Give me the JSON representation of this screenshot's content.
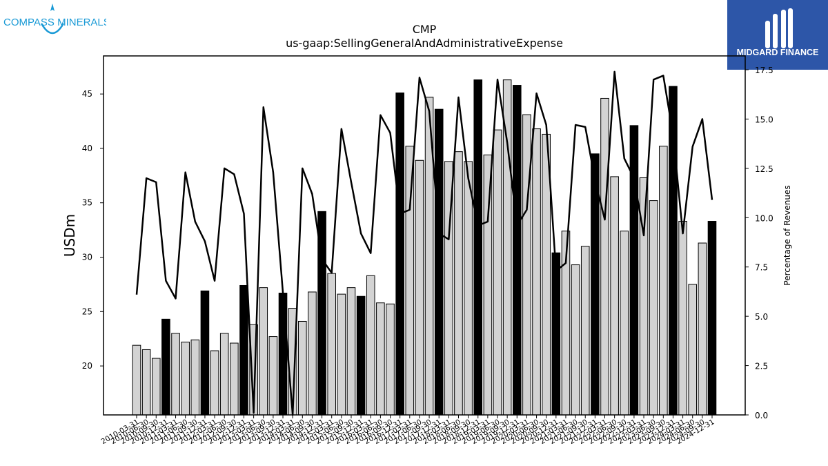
{
  "logos": {
    "left_text": "COMPASS MINERALS",
    "right_text": "MIDGARD FINANCE",
    "left_color": "#1a9ad6",
    "right_bg": "#2d56a8"
  },
  "chart_data": {
    "type": "bar",
    "title": "CMP",
    "subtitle": "us-gaap:SellingGeneralAndAdministrativeExpense",
    "ylabel": "USDm",
    "y2label": "Percentage of Revenues",
    "ylim": [
      15.5,
      48.5
    ],
    "y2lim": [
      0,
      18.2
    ],
    "yticks": [
      20,
      25,
      30,
      35,
      40,
      45
    ],
    "y2ticks": [
      "0.0",
      "2.5",
      "5.0",
      "7.5",
      "10.0",
      "12.5",
      "15.0",
      "17.5"
    ],
    "categories": [
      "2010-03-31",
      "2010-06-30",
      "2010-09-30",
      "2010-12-31",
      "2011-03-31",
      "2011-06-30",
      "2011-09-30",
      "2011-12-31",
      "2012-03-31",
      "2012-06-30",
      "2012-09-30",
      "2012-12-31",
      "2013-03-31",
      "2013-06-30",
      "2013-09-30",
      "2013-12-31",
      "2014-03-31",
      "2014-06-30",
      "2014-09-30",
      "2014-12-31",
      "2015-03-31",
      "2015-06-30",
      "2015-09-30",
      "2015-12-31",
      "2016-03-31",
      "2016-06-30",
      "2016-09-30",
      "2016-12-31",
      "2017-03-31",
      "2017-06-30",
      "2017-09-30",
      "2017-12-31",
      "2018-03-31",
      "2018-06-30",
      "2018-09-30",
      "2018-12-31",
      "2019-03-31",
      "2019-06-30",
      "2019-09-30",
      "2019-12-31",
      "2020-03-31",
      "2020-06-30",
      "2020-09-30",
      "2020-12-31",
      "2021-03-31",
      "2021-06-30",
      "2021-09-30",
      "2021-12-31",
      "2022-03-31",
      "2022-06-30",
      "2022-09-30",
      "2022-12-31",
      "2023-03-31",
      "2023-06-30",
      "2023-09-30",
      "2023-12-31",
      "2024-03-31",
      "2024-06-30",
      "2024-09-30",
      "2024-12-31"
    ],
    "series": [
      {
        "values": [
          21.9,
          21.5,
          20.7,
          24.3,
          23.0,
          22.2,
          22.4,
          26.9,
          21.4,
          23.0,
          22.1,
          27.4,
          23.8,
          27.2,
          22.7,
          26.7,
          25.3,
          24.1,
          26.8,
          34.2,
          28.5,
          26.6,
          27.2,
          26.4,
          28.3,
          25.8,
          25.7,
          45.1,
          40.2,
          38.9,
          44.7,
          43.6,
          38.8,
          39.7,
          38.8,
          46.3,
          39.4,
          41.7,
          46.3,
          45.8,
          43.1,
          41.8,
          41.3,
          30.4,
          32.4,
          29.3,
          31.0,
          39.5,
          44.6,
          37.4,
          32.4,
          42.1,
          37.3,
          35.2,
          40.2,
          45.7,
          33.3,
          27.5,
          31.3,
          33.3
        ],
        "highlight": [
          false,
          false,
          false,
          true,
          false,
          false,
          false,
          true,
          false,
          false,
          false,
          true,
          false,
          false,
          false,
          true,
          false,
          false,
          false,
          true,
          false,
          false,
          false,
          true,
          false,
          false,
          false,
          true,
          false,
          false,
          false,
          true,
          false,
          false,
          false,
          true,
          false,
          false,
          false,
          true,
          false,
          false,
          false,
          true,
          false,
          false,
          false,
          true,
          false,
          false,
          false,
          true,
          false,
          false,
          false,
          true,
          false,
          false,
          false,
          true
        ]
      },
      {
        "axis": "right",
        "type": "line",
        "values": [
          6.1,
          12.0,
          11.8,
          6.8,
          5.9,
          12.3,
          9.8,
          8.8,
          6.8,
          12.5,
          12.2,
          10.2,
          0.1,
          15.6,
          12.3,
          6.2,
          0.0,
          12.5,
          11.2,
          7.9,
          7.2,
          14.5,
          11.8,
          9.2,
          8.2,
          15.2,
          14.3,
          10.2,
          10.4,
          17.1,
          15.4,
          9.2,
          8.9,
          16.1,
          12.0,
          9.6,
          9.8,
          17.0,
          13.8,
          9.6,
          10.4,
          16.3,
          14.7,
          7.3,
          7.7,
          14.7,
          14.6,
          11.9,
          9.9,
          17.4,
          13.0,
          12.0,
          9.1,
          17.0,
          17.2,
          14.2,
          9.2,
          13.6,
          15.0,
          10.9
        ]
      }
    ],
    "legend": "none",
    "grid": false
  }
}
